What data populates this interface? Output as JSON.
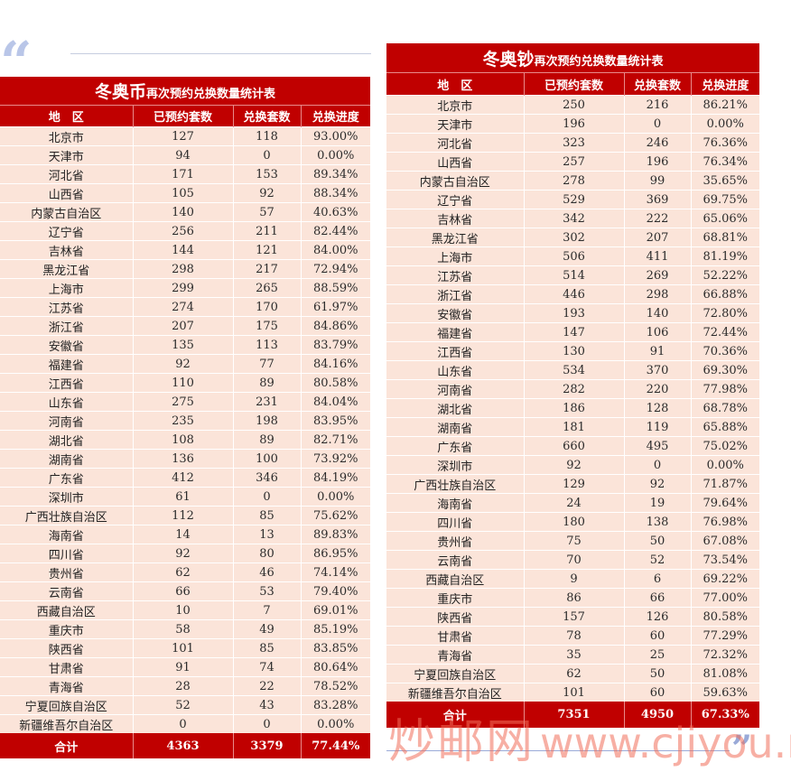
{
  "decor": {
    "open_quote": "“",
    "close_quote": "”",
    "watermark_cn": "炒邮网",
    "watermark_url": "www.cjiyou.net"
  },
  "tables": {
    "left": {
      "title_big": "冬奥币",
      "title_small": "再次预约兑换数量统计表",
      "headers": [
        "地　区",
        "已预约套数",
        "兑换套数",
        "兑换进度"
      ],
      "rows": [
        [
          "北京市",
          "127",
          "118",
          "93.00%"
        ],
        [
          "天津市",
          "94",
          "0",
          "0.00%"
        ],
        [
          "河北省",
          "171",
          "153",
          "89.34%"
        ],
        [
          "山西省",
          "105",
          "92",
          "88.34%"
        ],
        [
          "内蒙古自治区",
          "140",
          "57",
          "40.63%"
        ],
        [
          "辽宁省",
          "256",
          "211",
          "82.44%"
        ],
        [
          "吉林省",
          "144",
          "121",
          "84.00%"
        ],
        [
          "黑龙江省",
          "298",
          "217",
          "72.94%"
        ],
        [
          "上海市",
          "299",
          "265",
          "88.59%"
        ],
        [
          "江苏省",
          "274",
          "170",
          "61.97%"
        ],
        [
          "浙江省",
          "207",
          "175",
          "84.86%"
        ],
        [
          "安徽省",
          "135",
          "113",
          "83.79%"
        ],
        [
          "福建省",
          "92",
          "77",
          "84.16%"
        ],
        [
          "江西省",
          "110",
          "89",
          "80.58%"
        ],
        [
          "山东省",
          "275",
          "231",
          "84.04%"
        ],
        [
          "河南省",
          "235",
          "198",
          "83.95%"
        ],
        [
          "湖北省",
          "108",
          "89",
          "82.71%"
        ],
        [
          "湖南省",
          "136",
          "100",
          "73.92%"
        ],
        [
          "广东省",
          "412",
          "346",
          "84.19%"
        ],
        [
          "深圳市",
          "61",
          "0",
          "0.00%"
        ],
        [
          "广西壮族自治区",
          "112",
          "85",
          "75.62%"
        ],
        [
          "海南省",
          "14",
          "13",
          "89.83%"
        ],
        [
          "四川省",
          "92",
          "80",
          "86.95%"
        ],
        [
          "贵州省",
          "62",
          "46",
          "74.14%"
        ],
        [
          "云南省",
          "66",
          "53",
          "79.40%"
        ],
        [
          "西藏自治区",
          "10",
          "7",
          "69.01%"
        ],
        [
          "重庆市",
          "58",
          "49",
          "85.19%"
        ],
        [
          "陕西省",
          "101",
          "85",
          "83.85%"
        ],
        [
          "甘肃省",
          "91",
          "74",
          "80.64%"
        ],
        [
          "青海省",
          "28",
          "22",
          "78.52%"
        ],
        [
          "宁夏回族自治区",
          "52",
          "43",
          "83.28%"
        ],
        [
          "新疆维吾尔自治区",
          "0",
          "0",
          "0.00%"
        ]
      ],
      "total": [
        "合计",
        "4363",
        "3379",
        "77.44%"
      ]
    },
    "right": {
      "title_big": "冬奥钞",
      "title_small": "再次预约兑换数量统计表",
      "headers": [
        "地　区",
        "已预约套数",
        "兑换套数",
        "兑换进度"
      ],
      "rows": [
        [
          "北京市",
          "250",
          "216",
          "86.21%"
        ],
        [
          "天津市",
          "196",
          "0",
          "0.00%"
        ],
        [
          "河北省",
          "323",
          "246",
          "76.36%"
        ],
        [
          "山西省",
          "257",
          "196",
          "76.34%"
        ],
        [
          "内蒙古自治区",
          "278",
          "99",
          "35.65%"
        ],
        [
          "辽宁省",
          "529",
          "369",
          "69.75%"
        ],
        [
          "吉林省",
          "342",
          "222",
          "65.06%"
        ],
        [
          "黑龙江省",
          "302",
          "207",
          "68.81%"
        ],
        [
          "上海市",
          "506",
          "411",
          "81.19%"
        ],
        [
          "江苏省",
          "514",
          "269",
          "52.22%"
        ],
        [
          "浙江省",
          "446",
          "298",
          "66.88%"
        ],
        [
          "安徽省",
          "193",
          "140",
          "72.80%"
        ],
        [
          "福建省",
          "147",
          "106",
          "72.44%"
        ],
        [
          "江西省",
          "130",
          "91",
          "70.36%"
        ],
        [
          "山东省",
          "534",
          "370",
          "69.30%"
        ],
        [
          "河南省",
          "282",
          "220",
          "77.98%"
        ],
        [
          "湖北省",
          "186",
          "128",
          "68.78%"
        ],
        [
          "湖南省",
          "181",
          "119",
          "65.88%"
        ],
        [
          "广东省",
          "660",
          "495",
          "75.02%"
        ],
        [
          "深圳市",
          "92",
          "0",
          "0.00%"
        ],
        [
          "广西壮族自治区",
          "129",
          "92",
          "71.87%"
        ],
        [
          "海南省",
          "24",
          "19",
          "79.64%"
        ],
        [
          "四川省",
          "180",
          "138",
          "76.98%"
        ],
        [
          "贵州省",
          "75",
          "50",
          "67.08%"
        ],
        [
          "云南省",
          "70",
          "52",
          "73.54%"
        ],
        [
          "西藏自治区",
          "9",
          "6",
          "69.22%"
        ],
        [
          "重庆市",
          "86",
          "66",
          "77.00%"
        ],
        [
          "陕西省",
          "157",
          "126",
          "80.58%"
        ],
        [
          "甘肃省",
          "78",
          "60",
          "77.29%"
        ],
        [
          "青海省",
          "35",
          "25",
          "72.32%"
        ],
        [
          "宁夏回族自治区",
          "62",
          "50",
          "81.08%"
        ],
        [
          "新疆维吾尔自治区",
          "101",
          "60",
          "59.63%"
        ]
      ],
      "total": [
        "合计",
        "7351",
        "4950",
        "67.33%"
      ]
    }
  },
  "colors": {
    "header_red": "#c00000",
    "row_bg": "#fbe4d9",
    "quote_blue": "#b9c6e8"
  }
}
